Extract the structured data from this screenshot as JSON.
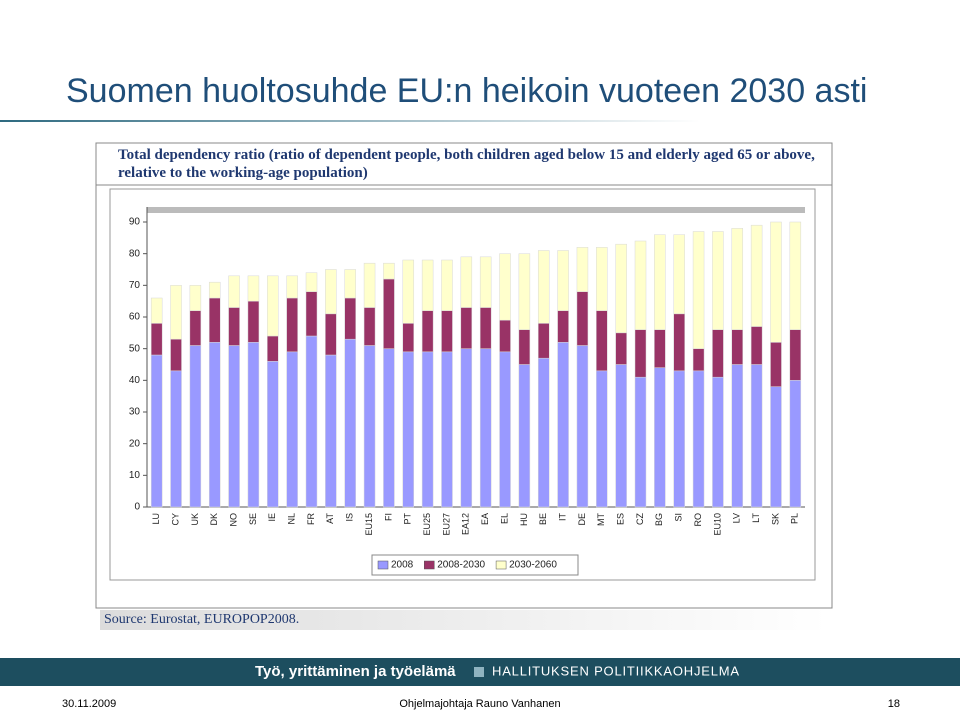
{
  "slide": {
    "title": "Suomen huoltosuhde EU:n heikoin vuoteen 2030 asti",
    "banner_left": "Työ, yrittäminen ja työelämä",
    "banner_right": "HALLITUKSEN POLITIIKKAOHJELMA",
    "date": "30.11.2009",
    "presenter": "Ohjelmajohtaja Rauno Vanhanen",
    "page": 18
  },
  "chart_data": {
    "type": "stacked_bar",
    "title": "Total dependency ratio (ratio of dependent people, both children aged below 15 and elderly aged 65 or above, relative to the working-age population)",
    "source": "Source: Eurostat, EUROPOP2008.",
    "categories": [
      "LU",
      "CY",
      "UK",
      "DK",
      "NO",
      "SE",
      "IE",
      "NL",
      "FR",
      "AT",
      "IS",
      "EU15",
      "FI",
      "PT",
      "EU25",
      "EU27",
      "EA12",
      "EA",
      "EL",
      "HU",
      "BE",
      "IT",
      "DE",
      "MT",
      "ES",
      "CZ",
      "BG",
      "SI",
      "RO",
      "EU10",
      "LV",
      "LT",
      "SK",
      "PL"
    ],
    "series": [
      {
        "name": "2008",
        "color": "#9999ff",
        "values": [
          48,
          43,
          51,
          52,
          51,
          52,
          46,
          49,
          54,
          48,
          53,
          51,
          50,
          49,
          49,
          49,
          50,
          50,
          49,
          45,
          47,
          52,
          51,
          43,
          45,
          41,
          44,
          43,
          43,
          41,
          45,
          45,
          38,
          40
        ]
      },
      {
        "name": "2008-2030",
        "color": "#993366",
        "values": [
          10,
          10,
          11,
          14,
          12,
          13,
          8,
          17,
          14,
          13,
          13,
          12,
          22,
          9,
          13,
          13,
          13,
          13,
          10,
          11,
          11,
          10,
          17,
          19,
          10,
          15,
          12,
          18,
          7,
          15,
          11,
          12,
          14,
          16
        ]
      },
      {
        "name": "2030-2060",
        "color": "#ffffcc",
        "values": [
          8,
          17,
          8,
          5,
          10,
          8,
          19,
          7,
          6,
          14,
          9,
          14,
          5,
          20,
          16,
          16,
          16,
          16,
          21,
          24,
          23,
          19,
          14,
          20,
          28,
          28,
          30,
          25,
          37,
          31,
          32,
          32,
          38,
          34
        ]
      }
    ],
    "ylim": [
      0,
      90
    ],
    "yticks": [
      0,
      10,
      20,
      30,
      40,
      50,
      60,
      70,
      80,
      90
    ]
  }
}
